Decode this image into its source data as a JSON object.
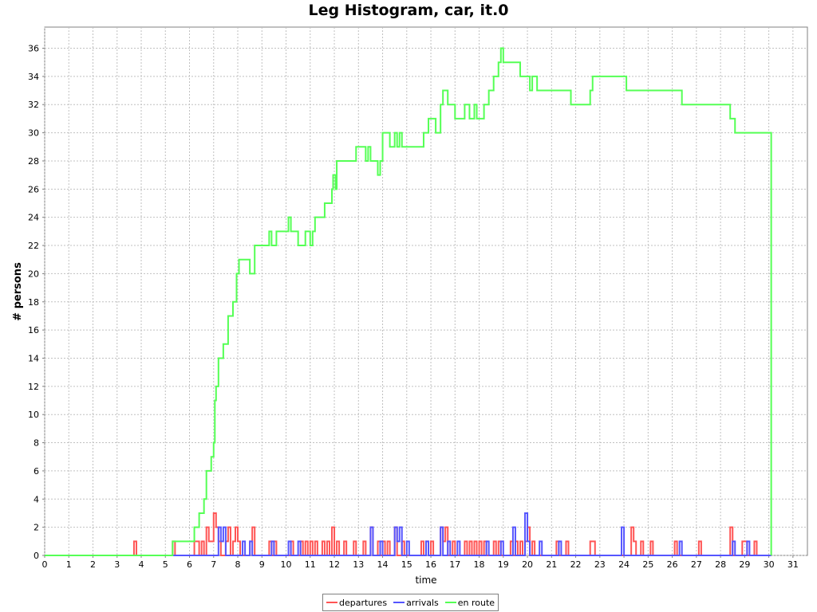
{
  "chart_data": {
    "type": "line",
    "title": "Leg Histogram, car, it.0",
    "xlabel": "time",
    "ylabel": "# persons",
    "xlim": [
      0,
      31.6
    ],
    "ylim": [
      0,
      37.5
    ],
    "x_ticks": [
      0,
      1,
      2,
      3,
      4,
      5,
      6,
      7,
      8,
      9,
      10,
      11,
      12,
      13,
      14,
      15,
      16,
      17,
      18,
      19,
      20,
      21,
      22,
      23,
      24,
      25,
      26,
      27,
      28,
      29,
      30,
      31
    ],
    "y_ticks": [
      0,
      2,
      4,
      6,
      8,
      10,
      12,
      14,
      16,
      18,
      20,
      22,
      24,
      26,
      28,
      30,
      32,
      34,
      36
    ],
    "grid": true,
    "legend_position": "bottom",
    "step": true,
    "series": [
      {
        "name": "departures",
        "color": "#ff5555",
        "points": [
          [
            0,
            0
          ],
          [
            3.7,
            1
          ],
          [
            3.8,
            0
          ],
          [
            5.3,
            1
          ],
          [
            5.4,
            0
          ],
          [
            6.2,
            1
          ],
          [
            6.4,
            0
          ],
          [
            6.5,
            1
          ],
          [
            6.6,
            0
          ],
          [
            6.7,
            2
          ],
          [
            6.8,
            1
          ],
          [
            7,
            3
          ],
          [
            7.1,
            2
          ],
          [
            7.2,
            1
          ],
          [
            7.3,
            0
          ],
          [
            7.5,
            1
          ],
          [
            7.6,
            2
          ],
          [
            7.7,
            0
          ],
          [
            7.8,
            1
          ],
          [
            7.9,
            2
          ],
          [
            8,
            1
          ],
          [
            8.1,
            0
          ],
          [
            8.5,
            1
          ],
          [
            8.6,
            2
          ],
          [
            8.7,
            0
          ],
          [
            9.3,
            1
          ],
          [
            9.4,
            0
          ],
          [
            9.5,
            1
          ],
          [
            9.6,
            0
          ],
          [
            10.2,
            1
          ],
          [
            10.3,
            0
          ],
          [
            10.6,
            1
          ],
          [
            10.7,
            0
          ],
          [
            10.8,
            1
          ],
          [
            10.9,
            0
          ],
          [
            11,
            1
          ],
          [
            11.1,
            0
          ],
          [
            11.2,
            1
          ],
          [
            11.3,
            0
          ],
          [
            11.5,
            1
          ],
          [
            11.6,
            0
          ],
          [
            11.7,
            1
          ],
          [
            11.8,
            0
          ],
          [
            11.9,
            2
          ],
          [
            12,
            0
          ],
          [
            12.1,
            1
          ],
          [
            12.2,
            0
          ],
          [
            12.4,
            1
          ],
          [
            12.5,
            0
          ],
          [
            12.8,
            1
          ],
          [
            12.9,
            0
          ],
          [
            13.2,
            1
          ],
          [
            13.3,
            0
          ],
          [
            13.5,
            2
          ],
          [
            13.6,
            0
          ],
          [
            13.8,
            1
          ],
          [
            13.9,
            0
          ],
          [
            14,
            1
          ],
          [
            14.1,
            0
          ],
          [
            14.2,
            1
          ],
          [
            14.3,
            0
          ],
          [
            14.5,
            2
          ],
          [
            14.6,
            0
          ],
          [
            14.8,
            1
          ],
          [
            14.9,
            0
          ],
          [
            15.6,
            1
          ],
          [
            15.7,
            0
          ],
          [
            15.8,
            1
          ],
          [
            15.9,
            0
          ],
          [
            16,
            1
          ],
          [
            16.1,
            0
          ],
          [
            16.4,
            2
          ],
          [
            16.5,
            1
          ],
          [
            16.6,
            2
          ],
          [
            16.7,
            0
          ],
          [
            16.9,
            1
          ],
          [
            17,
            0
          ],
          [
            17.4,
            1
          ],
          [
            17.5,
            0
          ],
          [
            17.6,
            1
          ],
          [
            17.7,
            0
          ],
          [
            17.8,
            1
          ],
          [
            17.9,
            0
          ],
          [
            18,
            1
          ],
          [
            18.1,
            0
          ],
          [
            18.2,
            1
          ],
          [
            18.3,
            0
          ],
          [
            18.6,
            1
          ],
          [
            18.7,
            0
          ],
          [
            18.8,
            1
          ],
          [
            18.9,
            0
          ],
          [
            19.3,
            1
          ],
          [
            19.4,
            0
          ],
          [
            19.5,
            1
          ],
          [
            19.6,
            0
          ],
          [
            19.7,
            1
          ],
          [
            19.8,
            0
          ],
          [
            19.9,
            1
          ],
          [
            20,
            2
          ],
          [
            20.1,
            0
          ],
          [
            20.2,
            1
          ],
          [
            20.3,
            0
          ],
          [
            21.2,
            1
          ],
          [
            21.3,
            0
          ],
          [
            21.6,
            1
          ],
          [
            21.7,
            0
          ],
          [
            22.6,
            1
          ],
          [
            22.8,
            0
          ],
          [
            24.3,
            2
          ],
          [
            24.4,
            1
          ],
          [
            24.5,
            0
          ],
          [
            24.7,
            1
          ],
          [
            24.8,
            0
          ],
          [
            25.1,
            1
          ],
          [
            25.2,
            0
          ],
          [
            26.1,
            1
          ],
          [
            26.2,
            0
          ],
          [
            27.1,
            1
          ],
          [
            27.2,
            0
          ],
          [
            28.4,
            2
          ],
          [
            28.5,
            0
          ],
          [
            28.9,
            1
          ],
          [
            29.1,
            0
          ],
          [
            29.4,
            1
          ],
          [
            29.5,
            0
          ],
          [
            30.1,
            0
          ]
        ]
      },
      {
        "name": "arrivals",
        "color": "#5555ff",
        "points": [
          [
            0,
            0
          ],
          [
            7.2,
            2
          ],
          [
            7.3,
            1
          ],
          [
            7.4,
            2
          ],
          [
            7.5,
            0
          ],
          [
            8.2,
            1
          ],
          [
            8.3,
            0
          ],
          [
            8.5,
            1
          ],
          [
            8.6,
            0
          ],
          [
            9.4,
            1
          ],
          [
            9.5,
            0
          ],
          [
            10.1,
            1
          ],
          [
            10.2,
            0
          ],
          [
            10.5,
            1
          ],
          [
            10.6,
            0
          ],
          [
            13.5,
            2
          ],
          [
            13.6,
            0
          ],
          [
            13.9,
            1
          ],
          [
            14,
            0
          ],
          [
            14.5,
            2
          ],
          [
            14.6,
            1
          ],
          [
            14.7,
            2
          ],
          [
            14.8,
            0
          ],
          [
            15,
            1
          ],
          [
            15.1,
            0
          ],
          [
            15.8,
            1
          ],
          [
            15.9,
            0
          ],
          [
            16.4,
            2
          ],
          [
            16.5,
            0
          ],
          [
            16.7,
            1
          ],
          [
            16.8,
            0
          ],
          [
            17.1,
            1
          ],
          [
            17.2,
            0
          ],
          [
            18.3,
            1
          ],
          [
            18.4,
            0
          ],
          [
            18.9,
            1
          ],
          [
            19,
            0
          ],
          [
            19.4,
            2
          ],
          [
            19.5,
            0
          ],
          [
            19.9,
            3
          ],
          [
            20,
            1
          ],
          [
            20.1,
            0
          ],
          [
            20.5,
            1
          ],
          [
            20.6,
            0
          ],
          [
            21.3,
            1
          ],
          [
            21.4,
            0
          ],
          [
            23.9,
            2
          ],
          [
            24,
            0
          ],
          [
            26.3,
            1
          ],
          [
            26.4,
            0
          ],
          [
            28.5,
            1
          ],
          [
            28.6,
            0
          ],
          [
            29.1,
            1
          ],
          [
            29.2,
            0
          ],
          [
            30.1,
            0
          ]
        ]
      },
      {
        "name": "en route",
        "color": "#55ff55",
        "points": [
          [
            0,
            0
          ],
          [
            5.3,
            1
          ],
          [
            6.2,
            2
          ],
          [
            6.4,
            3
          ],
          [
            6.6,
            4
          ],
          [
            6.7,
            6
          ],
          [
            6.9,
            7
          ],
          [
            7,
            8
          ],
          [
            7.05,
            11
          ],
          [
            7.1,
            12
          ],
          [
            7.2,
            14
          ],
          [
            7.4,
            15
          ],
          [
            7.6,
            17
          ],
          [
            7.8,
            18
          ],
          [
            7.95,
            20
          ],
          [
            8.05,
            21
          ],
          [
            8.5,
            20
          ],
          [
            8.7,
            22
          ],
          [
            9.3,
            23
          ],
          [
            9.4,
            22
          ],
          [
            9.6,
            23
          ],
          [
            10.1,
            24
          ],
          [
            10.2,
            23
          ],
          [
            10.5,
            22
          ],
          [
            10.8,
            23
          ],
          [
            11,
            22
          ],
          [
            11.1,
            23
          ],
          [
            11.2,
            24
          ],
          [
            11.6,
            25
          ],
          [
            11.9,
            26
          ],
          [
            11.95,
            27
          ],
          [
            12.05,
            26
          ],
          [
            12.1,
            28
          ],
          [
            12.9,
            29
          ],
          [
            13.3,
            28
          ],
          [
            13.4,
            29
          ],
          [
            13.5,
            28
          ],
          [
            13.8,
            27
          ],
          [
            13.9,
            28
          ],
          [
            14,
            30
          ],
          [
            14.3,
            29
          ],
          [
            14.5,
            30
          ],
          [
            14.6,
            29
          ],
          [
            14.7,
            30
          ],
          [
            14.8,
            29
          ],
          [
            15.1,
            29
          ],
          [
            15.6,
            29
          ],
          [
            15.7,
            30
          ],
          [
            15.9,
            31
          ],
          [
            16.2,
            30
          ],
          [
            16.4,
            32
          ],
          [
            16.5,
            33
          ],
          [
            16.7,
            32
          ],
          [
            17,
            31
          ],
          [
            17.4,
            32
          ],
          [
            17.6,
            31
          ],
          [
            17.8,
            32
          ],
          [
            17.9,
            31
          ],
          [
            18.2,
            32
          ],
          [
            18.4,
            33
          ],
          [
            18.6,
            34
          ],
          [
            18.8,
            35
          ],
          [
            18.9,
            36
          ],
          [
            19,
            35
          ],
          [
            19.7,
            34
          ],
          [
            20.1,
            33
          ],
          [
            20.2,
            34
          ],
          [
            20.4,
            33
          ],
          [
            21.8,
            32
          ],
          [
            22.6,
            33
          ],
          [
            22.7,
            34
          ],
          [
            24.1,
            33
          ],
          [
            26.4,
            32
          ],
          [
            28.4,
            31
          ],
          [
            28.6,
            30
          ],
          [
            30.1,
            0
          ]
        ]
      }
    ]
  }
}
